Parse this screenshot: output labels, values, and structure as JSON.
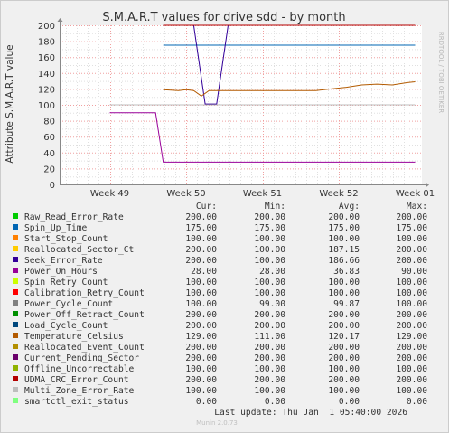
{
  "title": "S.M.A.R.T values for drive sdd - by month",
  "side_text": "RRDTOOL / TOBI OETIKER",
  "footer": "Munin 2.0.73",
  "last_update": "Last update: Thu Jan  1 05:40:00 2026",
  "colors": {
    "background": "#f0f0f0",
    "plot_bg": "#ffffff",
    "grid_minor": "#e0e0e0",
    "grid_major": "#f0a0a0",
    "axis": "#888888"
  },
  "chart_data": {
    "type": "line",
    "title": "S.M.A.R.T values for drive sdd - by month",
    "ylabel": "Attribute S.M.A.R.T value",
    "xlabel": "",
    "ylim": [
      0,
      200
    ],
    "yticks": [
      0,
      20,
      40,
      60,
      80,
      100,
      120,
      140,
      160,
      180,
      200
    ],
    "xlim": [
      48.5,
      1.15
    ],
    "xticks": [
      {
        "label": "Week 49",
        "pos": 0
      },
      {
        "label": "Week 50",
        "pos": 1
      },
      {
        "label": "Week 51",
        "pos": 2
      },
      {
        "label": "Week 52",
        "pos": 3
      },
      {
        "label": "Week 01",
        "pos": 4
      }
    ],
    "grid": true,
    "legend_position": "bottom",
    "legend_headers": [
      "Cur:",
      "Min:",
      "Avg:",
      "Max:"
    ],
    "series": [
      {
        "name": "Raw_Read_Error_Rate",
        "color": "#00cc00",
        "cur": "200.00",
        "min": "200.00",
        "avg": "200.00",
        "max": "200.00",
        "points": [
          [
            0.7,
            200
          ],
          [
            4.0,
            200
          ]
        ]
      },
      {
        "name": "Spin_Up_Time",
        "color": "#0066b3",
        "cur": "175.00",
        "min": "175.00",
        "avg": "175.00",
        "max": "175.00",
        "points": [
          [
            0.7,
            175
          ],
          [
            4.0,
            175
          ]
        ]
      },
      {
        "name": "Start_Stop_Count",
        "color": "#ff8000",
        "cur": "100.00",
        "min": "100.00",
        "avg": "100.00",
        "max": "100.00",
        "points": [
          [
            0.0,
            100
          ],
          [
            4.0,
            100
          ]
        ]
      },
      {
        "name": "Reallocated_Sector_Ct",
        "color": "#ffcc00",
        "cur": "200.00",
        "min": "100.00",
        "avg": "187.15",
        "max": "200.00",
        "points": [
          [
            0.0,
            100
          ],
          [
            0.6,
            100
          ]
        ]
      },
      {
        "name": "Seek_Error_Rate",
        "color": "#330099",
        "cur": "200.00",
        "min": "100.00",
        "avg": "186.66",
        "max": "200.00",
        "points": [
          [
            1.1,
            200
          ],
          [
            1.25,
            101
          ],
          [
            1.4,
            101
          ],
          [
            1.55,
            200
          ]
        ]
      },
      {
        "name": "Power_On_Hours",
        "color": "#990099",
        "cur": "28.00",
        "min": "28.00",
        "avg": "36.83",
        "max": "90.00",
        "points": [
          [
            0.0,
            90
          ],
          [
            0.6,
            90
          ],
          [
            0.7,
            28
          ],
          [
            4.0,
            28
          ]
        ]
      },
      {
        "name": "Spin_Retry_Count",
        "color": "#ccff00",
        "cur": "100.00",
        "min": "100.00",
        "avg": "100.00",
        "max": "100.00",
        "points": [
          [
            0.0,
            100
          ],
          [
            4.0,
            100
          ]
        ]
      },
      {
        "name": "Calibration_Retry_Count",
        "color": "#ff0000",
        "cur": "100.00",
        "min": "100.00",
        "avg": "100.00",
        "max": "100.00",
        "points": [
          [
            0.0,
            100
          ],
          [
            4.0,
            100
          ]
        ]
      },
      {
        "name": "Power_Cycle_Count",
        "color": "#808080",
        "cur": "100.00",
        "min": "99.00",
        "avg": "99.87",
        "max": "100.00",
        "points": [
          [
            0.0,
            100
          ],
          [
            4.0,
            100
          ]
        ]
      },
      {
        "name": "Power_Off_Retract_Count",
        "color": "#008f00",
        "cur": "200.00",
        "min": "200.00",
        "avg": "200.00",
        "max": "200.00",
        "points": [
          [
            0.7,
            200
          ],
          [
            4.0,
            200
          ]
        ]
      },
      {
        "name": "Load_Cycle_Count",
        "color": "#00487d",
        "cur": "200.00",
        "min": "200.00",
        "avg": "200.00",
        "max": "200.00",
        "points": [
          [
            0.7,
            200
          ],
          [
            4.0,
            200
          ]
        ]
      },
      {
        "name": "Temperature_Celsius",
        "color": "#b35a00",
        "cur": "129.00",
        "min": "111.00",
        "avg": "120.17",
        "max": "129.00",
        "points": [
          [
            0.7,
            119
          ],
          [
            0.9,
            118
          ],
          [
            1.0,
            119
          ],
          [
            1.1,
            118
          ],
          [
            1.2,
            111
          ],
          [
            1.3,
            118
          ],
          [
            1.6,
            118
          ],
          [
            1.9,
            118
          ],
          [
            2.2,
            118
          ],
          [
            2.5,
            118
          ],
          [
            2.7,
            118
          ],
          [
            2.9,
            120
          ],
          [
            3.1,
            122
          ],
          [
            3.3,
            125
          ],
          [
            3.5,
            126
          ],
          [
            3.7,
            125
          ],
          [
            3.9,
            128
          ],
          [
            4.0,
            129
          ]
        ]
      },
      {
        "name": "Reallocated_Event_Count",
        "color": "#b38f00",
        "cur": "200.00",
        "min": "200.00",
        "avg": "200.00",
        "max": "200.00",
        "points": [
          [
            0.7,
            200
          ],
          [
            4.0,
            200
          ]
        ]
      },
      {
        "name": "Current_Pending_Sector",
        "color": "#6b006b",
        "cur": "200.00",
        "min": "200.00",
        "avg": "200.00",
        "max": "200.00",
        "points": [
          [
            0.7,
            200
          ],
          [
            4.0,
            200
          ]
        ]
      },
      {
        "name": "Offline_Uncorrectable",
        "color": "#8fb300",
        "cur": "100.00",
        "min": "100.00",
        "avg": "100.00",
        "max": "100.00",
        "points": [
          [
            0.0,
            100
          ],
          [
            4.0,
            100
          ]
        ]
      },
      {
        "name": "UDMA_CRC_Error_Count",
        "color": "#b30000",
        "cur": "200.00",
        "min": "200.00",
        "avg": "200.00",
        "max": "200.00",
        "points": [
          [
            0.7,
            200
          ],
          [
            4.0,
            200
          ]
        ]
      },
      {
        "name": "Multi_Zone_Error_Rate",
        "color": "#bebebe",
        "cur": "100.00",
        "min": "100.00",
        "avg": "100.00",
        "max": "100.00",
        "points": [
          [
            0.0,
            100
          ],
          [
            4.0,
            100
          ]
        ]
      },
      {
        "name": "smartctl_exit_status",
        "color": "#80ff80",
        "cur": "0.00",
        "min": "0.00",
        "avg": "0.00",
        "max": "0.00",
        "points": [
          [
            0.0,
            0
          ],
          [
            4.0,
            0
          ]
        ]
      }
    ]
  }
}
